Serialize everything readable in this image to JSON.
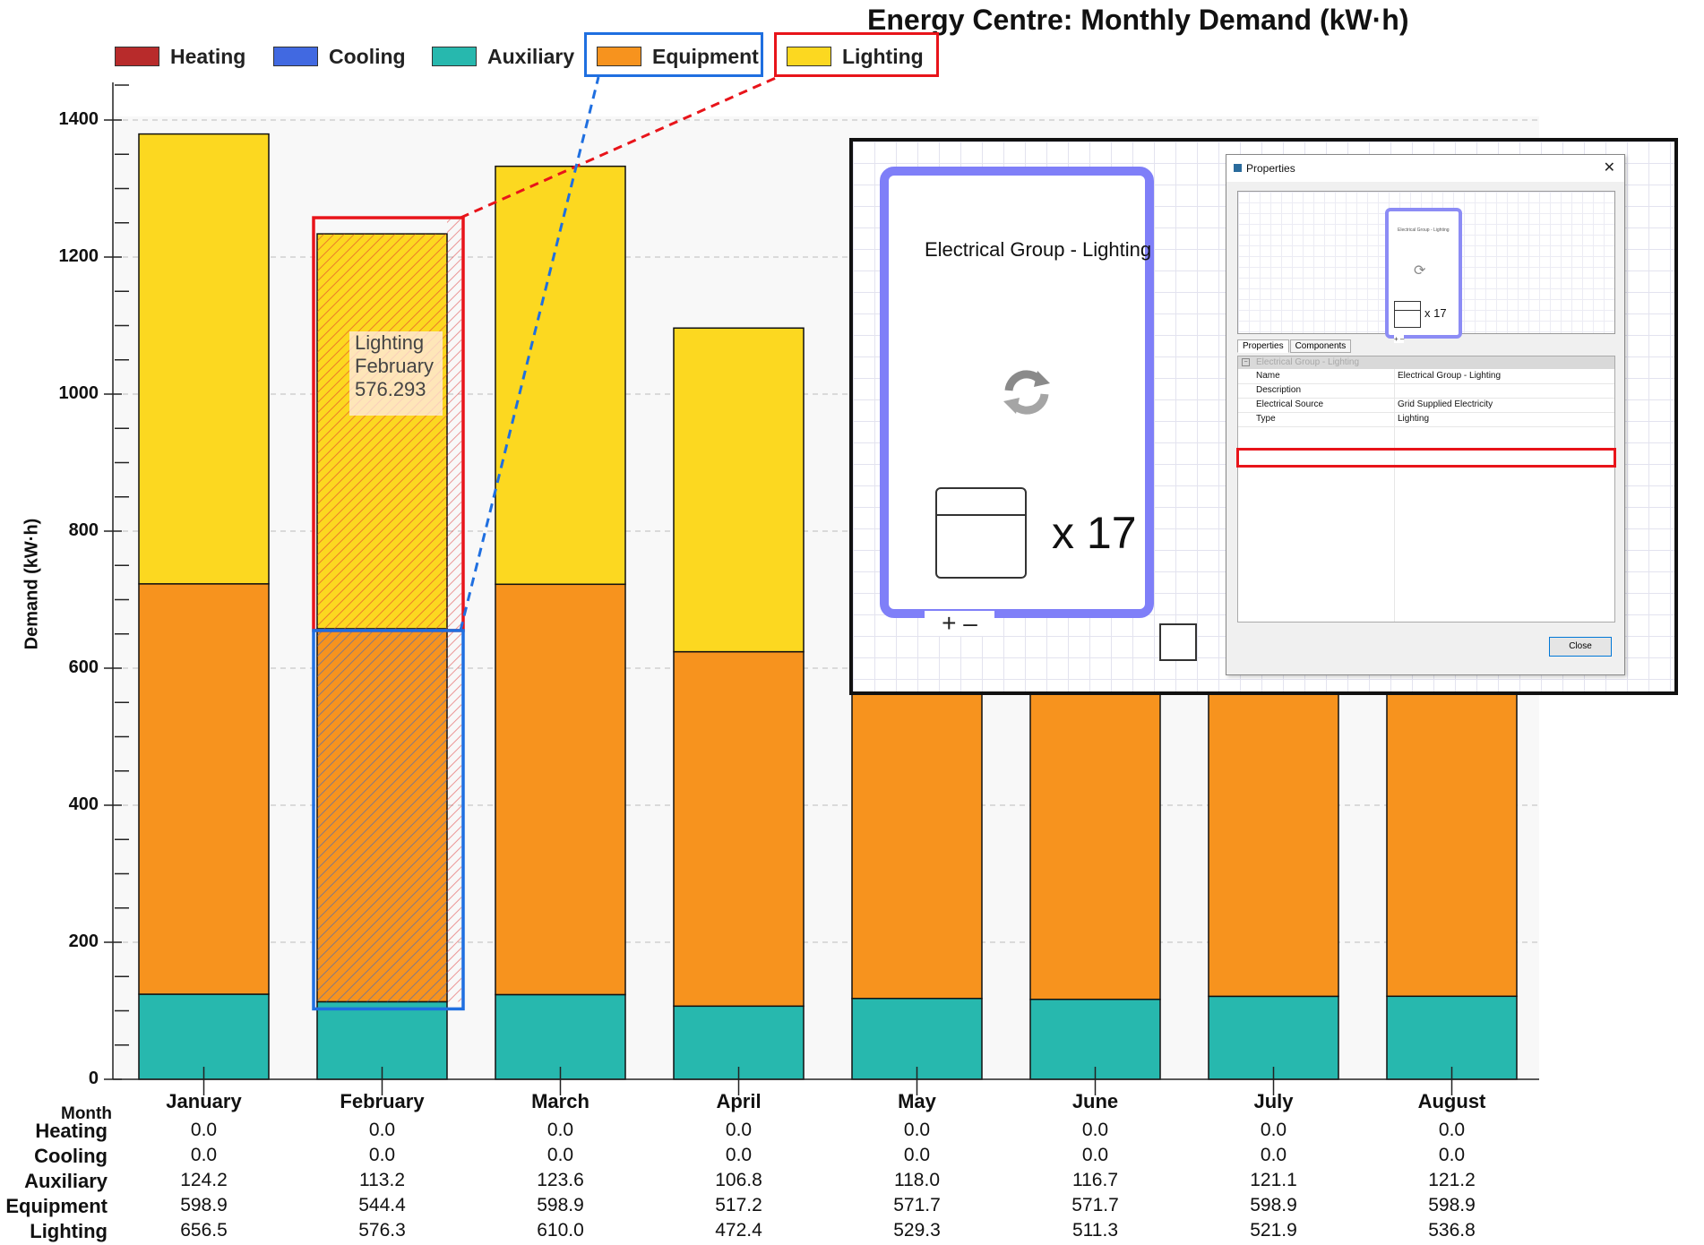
{
  "chart_data": {
    "type": "bar",
    "stacked": true,
    "title": "Energy Centre: Monthly Demand (kW·h)",
    "ylabel": "Demand (kW·h)",
    "xlabel": "Month",
    "ylim": [
      0,
      1400
    ],
    "yticks": [
      0,
      200,
      400,
      600,
      800,
      1000,
      1200,
      1400
    ],
    "grid": true,
    "legend_position": "top",
    "categories": [
      "January",
      "February",
      "March",
      "April",
      "May",
      "June",
      "July",
      "August"
    ],
    "series": [
      {
        "name": "Heating",
        "color": "#b82b2b",
        "values": [
          0.0,
          0.0,
          0.0,
          0.0,
          0.0,
          0.0,
          0.0,
          0.0
        ],
        "display": [
          "0.0",
          "0.0",
          "0.0",
          "0.0",
          "0.0",
          "0.0",
          "0.0",
          "0.0"
        ]
      },
      {
        "name": "Cooling",
        "color": "#4169e1",
        "values": [
          0.0,
          0.0,
          0.0,
          0.0,
          0.0,
          0.0,
          0.0,
          0.0
        ],
        "display": [
          "0.0",
          "0.0",
          "0.0",
          "0.0",
          "0.0",
          "0.0",
          "0.0",
          "0.0"
        ]
      },
      {
        "name": "Auxiliary",
        "color": "#27b8ae",
        "values": [
          124.2,
          113.2,
          123.6,
          106.8,
          118.0,
          116.7,
          121.1,
          121.2
        ],
        "display": [
          "124.2",
          "113.2",
          "123.6",
          "106.8",
          "118.0",
          "116.7",
          "121.1",
          "121.2"
        ]
      },
      {
        "name": "Equipment",
        "color": "#f7931e",
        "values": [
          598.9,
          544.4,
          598.9,
          517.2,
          571.7,
          571.7,
          598.9,
          598.9
        ],
        "display": [
          "598.9",
          "544.4",
          "598.9",
          "517.2",
          "571.7",
          "571.7",
          "598.9",
          "598.9"
        ]
      },
      {
        "name": "Lighting",
        "color": "#fcd820",
        "values": [
          656.5,
          576.3,
          610.0,
          472.4,
          529.3,
          511.3,
          521.9,
          536.8
        ],
        "display": [
          "656.5",
          "576.3",
          "610.0",
          "472.4",
          "529.3",
          "511.3",
          "521.9",
          "536.8"
        ]
      }
    ],
    "tooltip": {
      "lines": [
        "Lighting",
        "February",
        "576.293"
      ]
    }
  },
  "inset": {
    "node_title": "Electrical Group - Lighting",
    "node_count": "x 17",
    "node_plusminus": "+ –",
    "dialog_title": "Properties",
    "dialog_close_glyph": "✕",
    "mini_count": "x 17",
    "mini_title": "Electrical Group - Lighting",
    "mini_pm": "+ –",
    "tabs": [
      "Properties",
      "Components"
    ],
    "category": "Electrical Group - Lighting",
    "rows": [
      {
        "key": "Name",
        "value": "Electrical Group - Lighting"
      },
      {
        "key": "Description",
        "value": ""
      },
      {
        "key": "Electrical Source",
        "value": "Grid Supplied Electricity"
      },
      {
        "key": "Type",
        "value": "Lighting"
      }
    ],
    "close_button": "Close"
  }
}
